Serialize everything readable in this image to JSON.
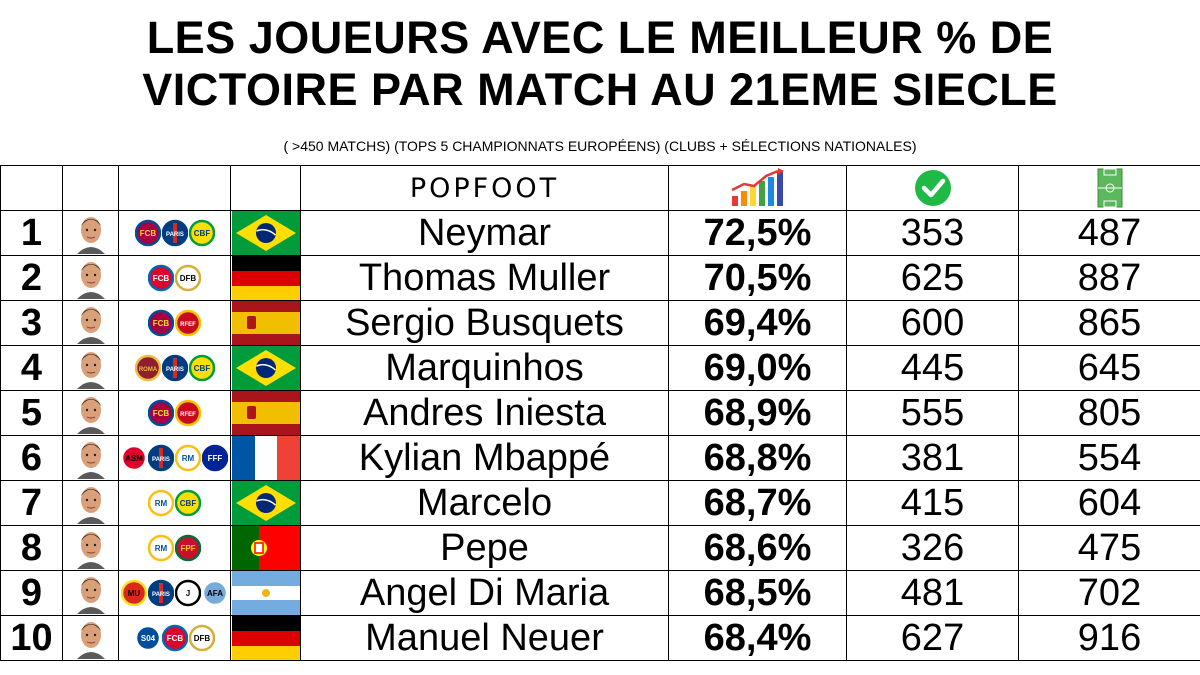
{
  "title_line1": "LES JOUEURS AVEC LE MEILLEUR % DE",
  "title_line2": "VICTOIRE PAR MATCH AU 21EME SIECLE",
  "subtitle": "( >450 MATCHS) (TOPS 5 CHAMPIONNATS EUROPÉENS) (CLUBS + SÉLECTIONS NATIONALES)",
  "brand": "POPFOOT",
  "header_icons": [
    "growth-chart-icon",
    "check-circle-icon",
    "football-pitch-icon"
  ],
  "colors": {
    "check_green": "#1fba45",
    "pitch_green": "#5cb85c"
  },
  "players": [
    {
      "rank": "1",
      "name": "Neymar",
      "pct": "72,5%",
      "wins": "353",
      "matches": "487",
      "clubs": [
        "barca",
        "psg",
        "brasil"
      ],
      "flag": "brazil"
    },
    {
      "rank": "2",
      "name": "Thomas Muller",
      "pct": "70,5%",
      "wins": "625",
      "matches": "887",
      "clubs": [
        "bayern",
        "germany"
      ],
      "flag": "germany"
    },
    {
      "rank": "3",
      "name": "Sergio Busquets",
      "pct": "69,4%",
      "wins": "600",
      "matches": "865",
      "clubs": [
        "barca",
        "spain"
      ],
      "flag": "spain"
    },
    {
      "rank": "4",
      "name": "Marquinhos",
      "pct": "69,0%",
      "wins": "445",
      "matches": "645",
      "clubs": [
        "roma",
        "psg",
        "brasil"
      ],
      "flag": "brazil"
    },
    {
      "rank": "5",
      "name": "Andres Iniesta",
      "pct": "68,9%",
      "wins": "555",
      "matches": "805",
      "clubs": [
        "barca",
        "spain"
      ],
      "flag": "spain"
    },
    {
      "rank": "6",
      "name": "Kylian Mbappé",
      "pct": "68,8%",
      "wins": "381",
      "matches": "554",
      "clubs": [
        "monaco",
        "psg",
        "real",
        "france"
      ],
      "flag": "france"
    },
    {
      "rank": "7",
      "name": "Marcelo",
      "pct": "68,7%",
      "wins": "415",
      "matches": "604",
      "clubs": [
        "real",
        "brasil"
      ],
      "flag": "brazil"
    },
    {
      "rank": "8",
      "name": "Pepe",
      "pct": "68,6%",
      "wins": "326",
      "matches": "475",
      "clubs": [
        "real",
        "portugal"
      ],
      "flag": "portugal"
    },
    {
      "rank": "9",
      "name": "Angel Di Maria",
      "pct": "68,5%",
      "wins": "481",
      "matches": "702",
      "clubs": [
        "manutd",
        "psg",
        "juve",
        "argentina"
      ],
      "flag": "argentina"
    },
    {
      "rank": "10",
      "name": "Manuel Neuer",
      "pct": "68,4%",
      "wins": "627",
      "matches": "916",
      "clubs": [
        "schalke",
        "bayern",
        "germany"
      ],
      "flag": "germany"
    }
  ]
}
